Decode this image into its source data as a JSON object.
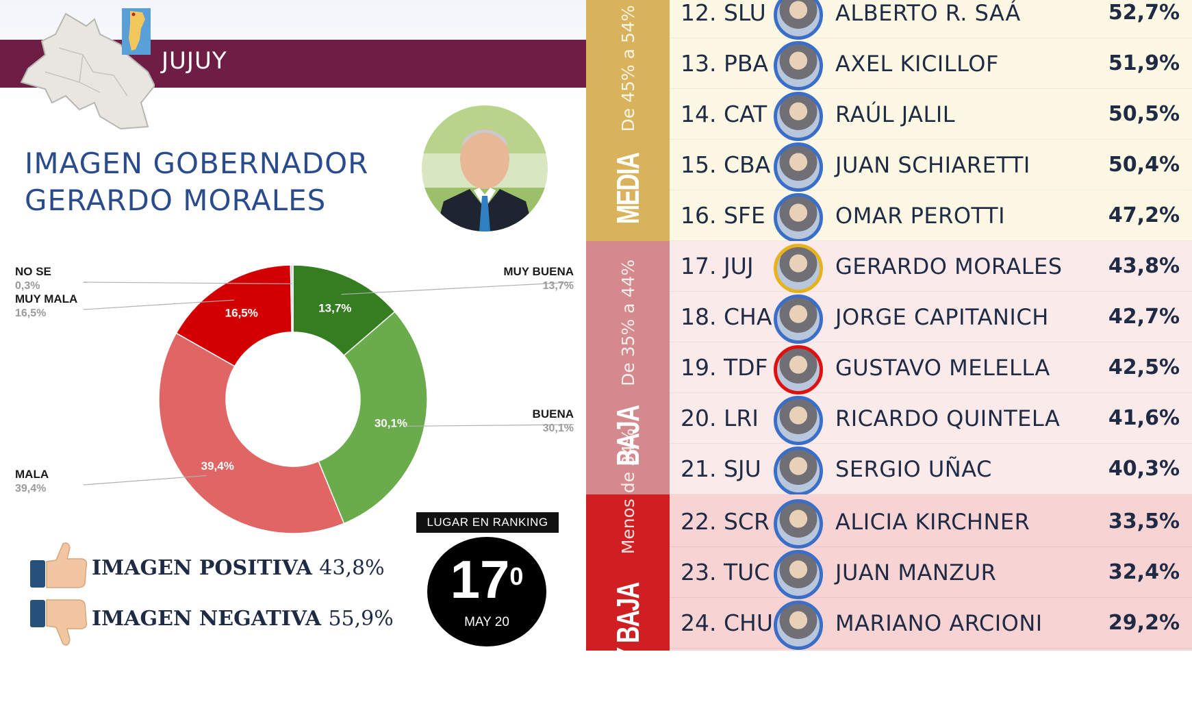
{
  "left_panel": {
    "province": "JUJUY",
    "headline_line1": "IMAGEN GOBERNADOR",
    "headline_line2": "GERARDO MORALES",
    "positive_label": "IMAGEN POSITIVA",
    "positive_value": "43,8%",
    "negative_label": "IMAGEN NEGATIVA",
    "negative_value": "55,9%",
    "ranking_label": "LUGAR EN RANKING",
    "ranking_number": "17",
    "ranking_degree": "0",
    "ranking_date": "MAY 20",
    "icons": [
      "province-map-icon",
      "argentina-map-icon",
      "governor-portrait",
      "thumbs-up-icon",
      "thumbs-down-icon"
    ]
  },
  "chart_data": [
    {
      "type": "pie",
      "donut": true,
      "categories": [
        "MUY BUENA",
        "BUENA",
        "MALA",
        "MUY MALA",
        "NO SE"
      ],
      "values": [
        13.7,
        30.1,
        39.4,
        16.5,
        0.3
      ],
      "value_labels": [
        "13,7%",
        "30,1%",
        "39,4%",
        "16,5%",
        "0,3%"
      ],
      "colors": [
        "#357d21",
        "#6aab4b",
        "#e06666",
        "#d20000",
        "#cfd3d8"
      ]
    },
    {
      "type": "table",
      "columns": [
        "rank",
        "governor",
        "image"
      ],
      "bands": [
        {
          "name": "MEDIA",
          "range": "De 45% a 54%",
          "side_color": "#d9b35b",
          "row_color": "#fdf8e4",
          "rows": [
            {
              "rank": "12. SLU",
              "name": "ALBERTO R. SAÁ",
              "pct": "52,7%",
              "value": 52.7
            },
            {
              "rank": "13. PBA",
              "name": "AXEL KICILLOF",
              "pct": "51,9%",
              "value": 51.9
            },
            {
              "rank": "14. CAT",
              "name": "RAÚL JALIL",
              "pct": "50,5%",
              "value": 50.5
            },
            {
              "rank": "15. CBA",
              "name": "JUAN SCHIARETTI",
              "pct": "50,4%",
              "value": 50.4
            },
            {
              "rank": "16. SFE",
              "name": "OMAR PEROTTI",
              "pct": "47,2%",
              "value": 47.2
            }
          ]
        },
        {
          "name": "BAJA",
          "range": "De 35% a 44%",
          "side_color": "#d48a8c",
          "row_color": "#fbeaea",
          "rows": [
            {
              "rank": "17. JUJ",
              "name": "GERARDO MORALES",
              "pct": "43,8%",
              "value": 43.8
            },
            {
              "rank": "18. CHA",
              "name": "JORGE CAPITANICH",
              "pct": "42,7%",
              "value": 42.7
            },
            {
              "rank": "19. TDF",
              "name": "GUSTAVO MELELLA",
              "pct": "42,5%",
              "value": 42.5
            },
            {
              "rank": "20. LRI",
              "name": "RICARDO QUINTELA",
              "pct": "41,6%",
              "value": 41.6
            },
            {
              "rank": "21. SJU",
              "name": "SERGIO UÑAC",
              "pct": "40,3%",
              "value": 40.3
            }
          ]
        },
        {
          "name": "MUY BAJA",
          "range": "Menos de 34%",
          "side_color": "#cf1f22",
          "row_color": "#f7d3d3",
          "rows": [
            {
              "rank": "22. SCR",
              "name": "ALICIA KIRCHNER",
              "pct": "33,5%",
              "value": 33.5
            },
            {
              "rank": "23. TUC",
              "name": "JUAN MANZUR",
              "pct": "32,4%",
              "value": 32.4
            },
            {
              "rank": "24. CHU",
              "name": "MARIANO ARCIONI",
              "pct": "29,2%",
              "value": 29.2
            }
          ]
        }
      ],
      "highlight_ring_colors": {
        "17. JUJ": "#e6b31e",
        "19. TDF": "#e01010",
        "default": "#3b6fc7"
      }
    }
  ]
}
